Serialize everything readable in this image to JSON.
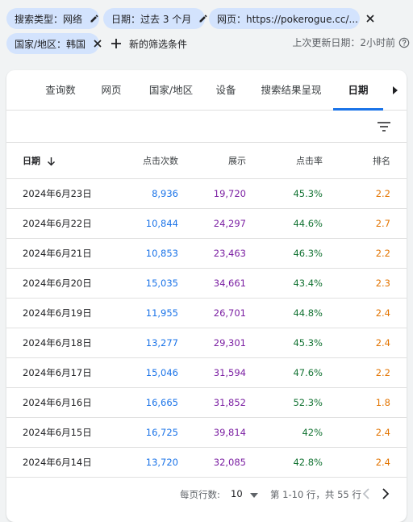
{
  "filters": {
    "chips": [
      {
        "label": "搜索类型：网络",
        "icon": "pencil-icon"
      },
      {
        "label": "日期：过去 3 个月",
        "icon": "pencil-icon"
      },
      {
        "label": "网页：https://pokerogue.cc/...",
        "icon": "close-icon"
      },
      {
        "label": "国家/地区：韩国",
        "icon": "close-icon"
      }
    ],
    "add_filter_label": "新的筛选条件",
    "last_updated": "上次更新日期：2小时前"
  },
  "tabs": [
    {
      "label": "查询数",
      "active": false
    },
    {
      "label": "网页",
      "active": false
    },
    {
      "label": "国家/地区",
      "active": false
    },
    {
      "label": "设备",
      "active": false
    },
    {
      "label": "搜索结果呈现",
      "active": false
    },
    {
      "label": "日期",
      "active": true
    }
  ],
  "table": {
    "headers": {
      "date": "日期",
      "clicks": "点击次数",
      "impressions": "展示",
      "ctr": "点击率",
      "position": "排名"
    },
    "rows": [
      {
        "date": "2024年6月23日",
        "clicks": "8,936",
        "impressions": "19,720",
        "ctr": "45.3%",
        "position": "2.2"
      },
      {
        "date": "2024年6月22日",
        "clicks": "10,844",
        "impressions": "24,297",
        "ctr": "44.6%",
        "position": "2.7"
      },
      {
        "date": "2024年6月21日",
        "clicks": "10,853",
        "impressions": "23,463",
        "ctr": "46.3%",
        "position": "2.2"
      },
      {
        "date": "2024年6月20日",
        "clicks": "15,035",
        "impressions": "34,661",
        "ctr": "43.4%",
        "position": "2.3"
      },
      {
        "date": "2024年6月19日",
        "clicks": "11,955",
        "impressions": "26,701",
        "ctr": "44.8%",
        "position": "2.4"
      },
      {
        "date": "2024年6月18日",
        "clicks": "13,277",
        "impressions": "29,301",
        "ctr": "45.3%",
        "position": "2.4"
      },
      {
        "date": "2024年6月17日",
        "clicks": "15,046",
        "impressions": "31,594",
        "ctr": "47.6%",
        "position": "2.2"
      },
      {
        "date": "2024年6月16日",
        "clicks": "16,665",
        "impressions": "31,852",
        "ctr": "52.3%",
        "position": "1.8"
      },
      {
        "date": "2024年6月15日",
        "clicks": "16,725",
        "impressions": "39,814",
        "ctr": "42%",
        "position": "2.4"
      },
      {
        "date": "2024年6月14日",
        "clicks": "13,720",
        "impressions": "32,085",
        "ctr": "42.8%",
        "position": "2.4"
      }
    ]
  },
  "pagination": {
    "rows_per_page_label": "每页行数:",
    "rows_per_page_value": "10",
    "range_text": "第 1-10 行，共 55 行"
  },
  "colors": {
    "clicks": "#1a73e8",
    "impressions": "#7b1fa2",
    "ctr": "#137333",
    "position": "#e37400",
    "chip_bg": "#d3e3fd"
  }
}
